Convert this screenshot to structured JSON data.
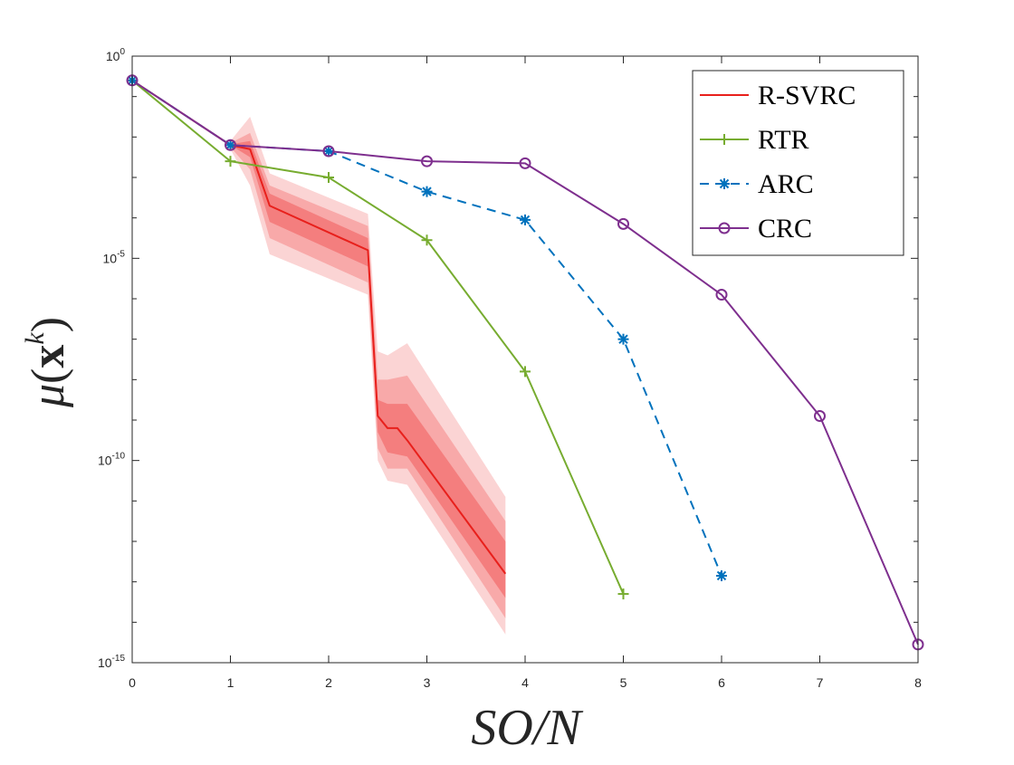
{
  "chart_data": {
    "type": "line",
    "title": "",
    "xlabel": "SO/N",
    "ylabel": "μ(x^k)",
    "ylabel_parts": {
      "mu": "μ",
      "open": "(",
      "x": "x",
      "k": "k",
      "close": ")"
    },
    "xlim": [
      0,
      8
    ],
    "ylim_log10": [
      -15,
      0
    ],
    "yscale": "log",
    "x_ticks": [
      0,
      1,
      2,
      3,
      4,
      5,
      6,
      7,
      8
    ],
    "x_tick_labels": [
      "0",
      "1",
      "2",
      "3",
      "4",
      "5",
      "6",
      "7",
      "8"
    ],
    "y_tick_labels": [
      {
        "exp": 0,
        "base": "10",
        "sup": "0"
      },
      {
        "exp": -5,
        "base": "10",
        "sup": "-5"
      },
      {
        "exp": -10,
        "base": "10",
        "sup": "-10"
      },
      {
        "exp": -15,
        "base": "10",
        "sup": "-15"
      }
    ],
    "grid": false,
    "legend_position": "top-right",
    "series": [
      {
        "name": "R-SVRC",
        "color": "#e8201c",
        "marker": "none",
        "dash": "solid",
        "x": [
          0,
          1,
          1.2,
          1.4,
          2.4,
          2.5,
          2.6,
          2.7,
          2.8,
          3.8
        ],
        "log10_y": [
          -0.6,
          -2.2,
          -2.3,
          -3.7,
          -4.8,
          -8.9,
          -9.2,
          -9.2,
          -9.5,
          -12.8
        ],
        "band_outer": {
          "x": [
            1,
            1.2,
            1.4,
            2.4,
            2.5,
            2.6,
            2.8,
            3.8
          ],
          "log10_lo": [
            -2.3,
            -3.2,
            -4.9,
            -5.9,
            -10.0,
            -10.5,
            -10.6,
            -14.3
          ],
          "log10_hi": [
            -2.1,
            -1.5,
            -2.9,
            -3.9,
            -7.3,
            -7.4,
            -7.1,
            -10.9
          ]
        },
        "band_mid": {
          "x": [
            1,
            1.2,
            1.4,
            2.4,
            2.5,
            2.6,
            2.8,
            3.8
          ],
          "log10_lo": [
            -2.25,
            -2.8,
            -4.5,
            -5.6,
            -9.7,
            -10.2,
            -10.2,
            -13.9
          ],
          "log10_hi": [
            -2.15,
            -1.9,
            -3.2,
            -4.2,
            -8.0,
            -8.0,
            -7.9,
            -11.5
          ]
        },
        "band_inner": {
          "x": [
            1,
            1.2,
            1.4,
            2.4,
            2.5,
            2.6,
            2.8,
            3.8
          ],
          "log10_lo": [
            -2.2,
            -2.5,
            -4.1,
            -5.2,
            -9.3,
            -9.8,
            -9.9,
            -13.4
          ],
          "log10_hi": [
            -2.18,
            -2.1,
            -3.4,
            -4.5,
            -8.5,
            -8.6,
            -8.6,
            -12.0
          ]
        }
      },
      {
        "name": "RTR",
        "color": "#77ac30",
        "marker": "plus",
        "dash": "solid",
        "x": [
          0,
          1,
          2,
          3,
          4,
          5
        ],
        "log10_y": [
          -0.6,
          -2.6,
          -3.0,
          -4.55,
          -7.8,
          -13.3
        ]
      },
      {
        "name": "ARC",
        "color": "#0072bd",
        "marker": "asterisk",
        "dash": "dashed",
        "x": [
          0,
          1,
          2,
          3,
          4,
          5,
          6
        ],
        "log10_y": [
          -0.6,
          -2.2,
          -2.35,
          -3.35,
          -4.05,
          -7.0,
          -12.85
        ]
      },
      {
        "name": "CRC",
        "color": "#7e2f8e",
        "marker": "circle",
        "dash": "solid",
        "x": [
          0,
          1,
          2,
          3,
          4,
          5,
          6,
          7,
          8
        ],
        "log10_y": [
          -0.6,
          -2.2,
          -2.35,
          -2.6,
          -2.65,
          -4.15,
          -5.9,
          -8.9,
          -14.55
        ]
      }
    ],
    "legend": [
      "R-SVRC",
      "RTR",
      "ARC",
      "CRC"
    ]
  }
}
